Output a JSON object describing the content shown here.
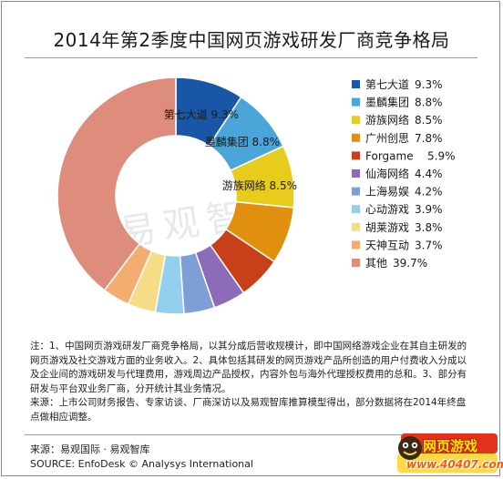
{
  "chart_data": {
    "type": "pie",
    "title": "2014年第2季度中国网页游戏研发厂商竞争格局",
    "slices": [
      {
        "label": "第七大道",
        "value": 9.3,
        "display": "9.3%",
        "color": "#1a56a6"
      },
      {
        "label": "墨麟集团",
        "value": 8.8,
        "display": "8.8%",
        "color": "#4aa6d8"
      },
      {
        "label": "游族网络",
        "value": 8.5,
        "display": "8.5%",
        "color": "#e8cc1c"
      },
      {
        "label": "广州创思",
        "value": 7.8,
        "display": "7.8%",
        "color": "#e0900e"
      },
      {
        "label": "Forgame",
        "value": 5.9,
        "display": "5.9%",
        "color": "#c8401a"
      },
      {
        "label": "仙海网络",
        "value": 4.4,
        "display": "4.4%",
        "color": "#8c6bb8"
      },
      {
        "label": "上海易娱",
        "value": 4.2,
        "display": "4.2%",
        "color": "#7d9fd6"
      },
      {
        "label": "心动游戏",
        "value": 3.9,
        "display": "3.9%",
        "color": "#93d0ee"
      },
      {
        "label": "胡莱游戏",
        "value": 3.8,
        "display": "3.8%",
        "color": "#f6dc86"
      },
      {
        "label": "天神互动",
        "value": 3.7,
        "display": "3.7%",
        "color": "#f4ad70"
      },
      {
        "label": "其他",
        "value": 39.7,
        "display": "39.7%",
        "color": "#de8c7c"
      }
    ],
    "in_chart_labels": [
      {
        "text": "第七大道  9.3%"
      },
      {
        "text": "墨麟集团  8.8%"
      },
      {
        "text": "游族网络  8.5%"
      }
    ],
    "legend_position": "right"
  },
  "notes": "注：1、中国网页游戏研发厂商竞争格局，以其分成后营收规模计，即中国网络游戏企业在其自主研发的网页游戏及社交游戏方面的业务收入。2、具体包括其研发的网页游戏产品所创造的用户付费收入分成以及企业间的游戏研发与代理费用，游戏周边产品授权，内容外包与海外代理授权费用的总和。3、部分有研发与平台双业务厂商，分开统计其业务情况。\n来源：上市公司财务报告、专家访谈、厂商深访以及易观智库推算模型得出，部分数据将在2014年终盘点做相应调整。",
  "source_cn": "来源：易观国际 · 易观智库",
  "source_en": "SOURCE: EnfoDesk © Analysys International",
  "watermark": "易观智库",
  "logo": {
    "name": "网页游戏",
    "url": "www.40407.com"
  }
}
